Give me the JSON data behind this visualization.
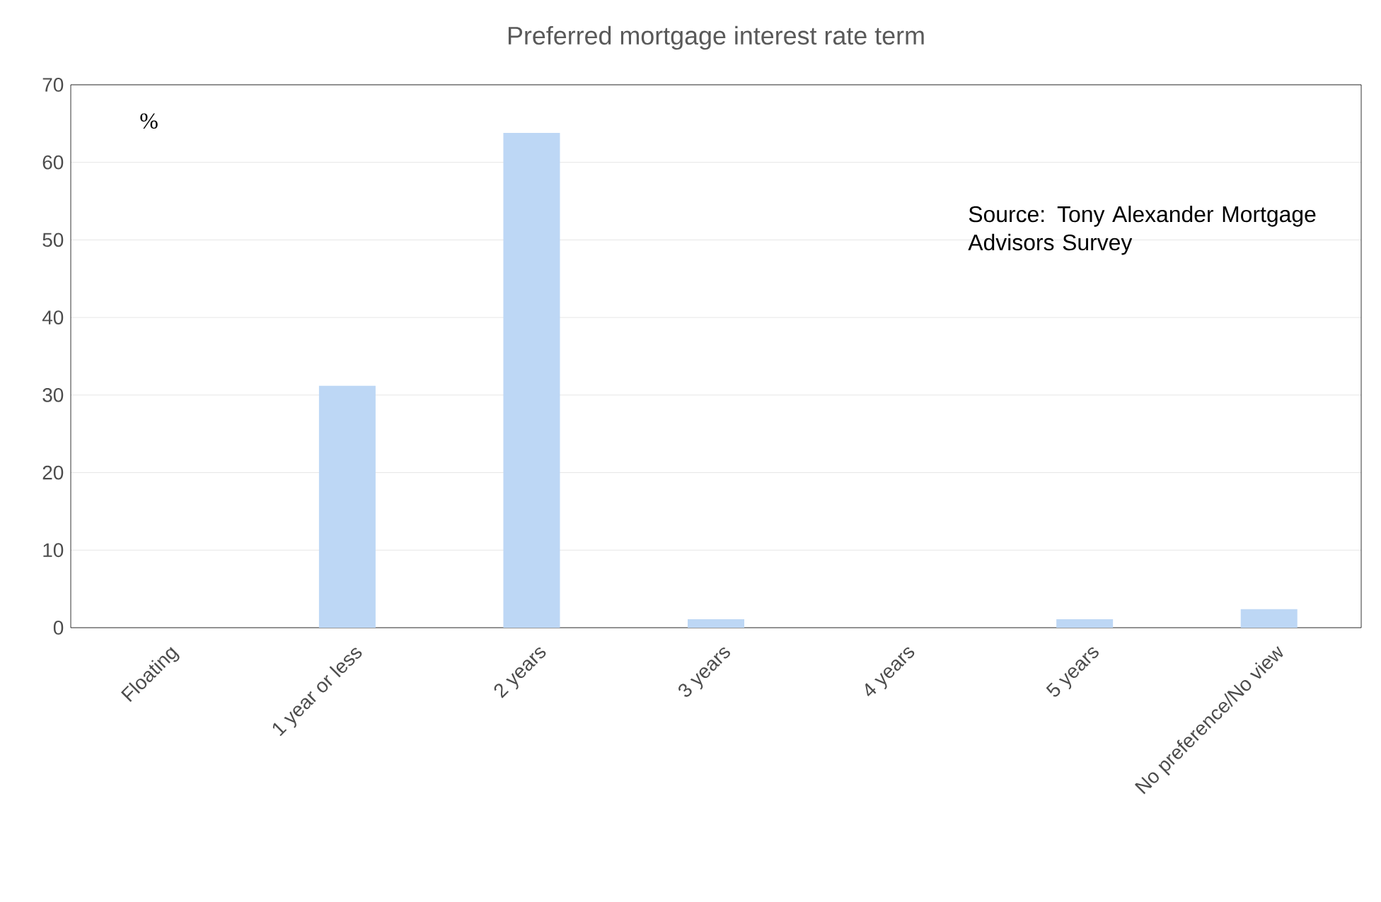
{
  "chart_data": {
    "type": "bar",
    "title": "Preferred mortgage interest rate term",
    "ylabel": "%",
    "categories": [
      "Floating",
      "1 year or less",
      "2 years",
      "3 years",
      "4 years",
      "5 years",
      "No preference/No view"
    ],
    "values": [
      0,
      31.2,
      63.8,
      1.1,
      0,
      1.1,
      2.4
    ],
    "color": "#bdd7f5",
    "ylim": [
      0,
      70
    ],
    "yticks": [
      0,
      10,
      20,
      30,
      40,
      50,
      60,
      70
    ],
    "grid": "y",
    "annotations": [
      "Source: Tony Alexander Mortgage Advisors Survey"
    ]
  }
}
